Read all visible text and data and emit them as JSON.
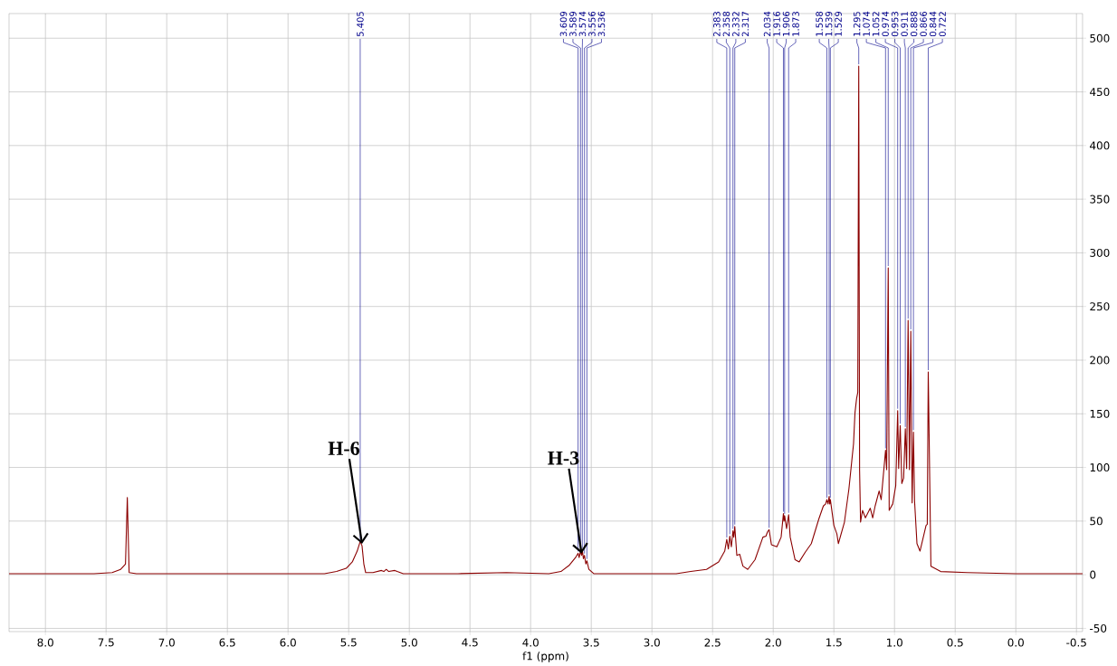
{
  "chart_data": {
    "type": "line",
    "xlabel": "f1 (ppm)",
    "xlim": [
      8.3,
      -0.55
    ],
    "ylim": [
      -53,
      523
    ],
    "xticks": [
      {
        "value": 8,
        "label": "8.0"
      },
      {
        "value": 7.5,
        "label": "7.5"
      },
      {
        "value": 7,
        "label": "7.0"
      },
      {
        "value": 6.5,
        "label": "6.5"
      },
      {
        "value": 6,
        "label": "6.0"
      },
      {
        "value": 5.5,
        "label": "5.5"
      },
      {
        "value": 5,
        "label": "5.0"
      },
      {
        "value": 4.5,
        "label": "4.5"
      },
      {
        "value": 4,
        "label": "4.0"
      },
      {
        "value": 3.5,
        "label": "3.5"
      },
      {
        "value": 3,
        "label": "3.0"
      },
      {
        "value": 2.5,
        "label": "2.5"
      },
      {
        "value": 2,
        "label": "2.0"
      },
      {
        "value": 1.5,
        "label": "1.5"
      },
      {
        "value": 1,
        "label": "1.0"
      },
      {
        "value": 0.5,
        "label": "0.5"
      },
      {
        "value": 0,
        "label": "0.0"
      },
      {
        "value": -0.5,
        "label": "-0.5"
      }
    ],
    "yticks": [
      -50,
      0,
      50,
      100,
      150,
      200,
      250,
      300,
      350,
      400,
      450,
      500
    ],
    "grid": true,
    "line_style": "solid",
    "marker": "none",
    "series": [
      {
        "color": "#8b0000",
        "x": [
          8.3,
          7.6,
          7.45,
          7.38,
          7.34,
          7.325,
          7.31,
          7.25,
          6.5,
          5.7,
          5.6,
          5.52,
          5.47,
          5.43,
          5.405,
          5.39,
          5.375,
          5.36,
          5.3,
          5.23,
          5.21,
          5.19,
          5.17,
          5.12,
          5.1,
          5.05,
          4.6,
          4.2,
          3.85,
          3.75,
          3.68,
          3.63,
          3.609,
          3.6,
          3.589,
          3.58,
          3.574,
          3.565,
          3.556,
          3.545,
          3.536,
          3.52,
          3.48,
          2.8,
          2.68,
          2.55,
          2.45,
          2.4,
          2.383,
          2.37,
          2.358,
          2.345,
          2.332,
          2.325,
          2.317,
          2.3,
          2.276,
          2.25,
          2.21,
          2.15,
          2.085,
          2.06,
          2.047,
          2.034,
          2.015,
          1.97,
          1.935,
          1.916,
          1.911,
          1.906,
          1.89,
          1.873,
          1.86,
          1.82,
          1.786,
          1.736,
          1.686,
          1.624,
          1.587,
          1.568,
          1.558,
          1.548,
          1.539,
          1.534,
          1.529,
          1.5,
          1.475,
          1.463,
          1.413,
          1.376,
          1.338,
          1.326,
          1.313,
          1.303,
          1.295,
          1.288,
          1.28,
          1.264,
          1.24,
          1.2,
          1.18,
          1.16,
          1.127,
          1.11,
          1.074,
          1.065,
          1.052,
          1.044,
          1.015,
          0.99,
          0.974,
          0.966,
          0.953,
          0.94,
          0.925,
          0.911,
          0.9,
          0.888,
          0.877,
          0.866,
          0.855,
          0.844,
          0.835,
          0.815,
          0.79,
          0.74,
          0.73,
          0.722,
          0.7,
          0.62,
          0.4,
          0.0,
          -0.55
        ],
        "values": [
          1,
          1,
          2,
          5,
          10,
          72,
          2,
          1,
          1,
          1,
          3,
          6,
          12,
          22,
          31,
          27,
          10,
          2,
          2,
          4,
          3,
          5,
          3,
          4,
          3,
          1,
          1,
          2,
          1,
          3,
          9,
          16,
          20,
          16,
          22,
          18,
          23,
          15,
          18,
          10,
          13,
          5,
          1,
          1,
          3,
          5,
          12,
          22,
          33,
          24,
          36,
          26,
          41,
          35,
          45,
          18,
          19,
          8,
          5,
          14,
          35,
          36,
          40,
          42,
          28,
          26,
          35,
          57,
          50,
          55,
          43,
          56,
          35,
          14,
          12,
          21,
          29,
          52,
          64,
          66,
          70,
          66,
          73,
          66,
          70,
          46,
          38,
          29,
          49,
          80,
          122,
          151,
          164,
          170,
          474,
          97,
          49,
          60,
          53,
          62,
          53,
          64,
          78,
          70,
          116,
          98,
          286,
          60,
          66,
          83,
          153,
          99,
          139,
          85,
          90,
          136,
          99,
          237,
          98,
          227,
          67,
          133,
          69,
          29,
          22,
          46,
          47,
          189,
          8,
          3,
          2,
          1,
          1
        ]
      }
    ],
    "annotations": [
      {
        "text": "H-6",
        "x": 5.39,
        "y": 27
      },
      {
        "text": "H-3",
        "x": 3.58,
        "y": 18
      },
      {
        "text": "5.405",
        "x": 5.405,
        "y": 31
      },
      {
        "text": "3.609",
        "x": 3.609,
        "y": 20
      },
      {
        "text": "3.589",
        "x": 3.589,
        "y": 22
      },
      {
        "text": "3.574",
        "x": 3.574,
        "y": 23
      },
      {
        "text": "3.556",
        "x": 3.556,
        "y": 18
      },
      {
        "text": "3.536",
        "x": 3.536,
        "y": 13
      },
      {
        "text": "2.383",
        "x": 2.383,
        "y": 33
      },
      {
        "text": "2.358",
        "x": 2.358,
        "y": 36
      },
      {
        "text": "2.332",
        "x": 2.332,
        "y": 41
      },
      {
        "text": "2.317",
        "x": 2.317,
        "y": 45
      },
      {
        "text": "2.034",
        "x": 2.034,
        "y": 42
      },
      {
        "text": "1.916",
        "x": 1.916,
        "y": 57
      },
      {
        "text": "1.906",
        "x": 1.906,
        "y": 55
      },
      {
        "text": "1.873",
        "x": 1.873,
        "y": 56
      },
      {
        "text": "1.558",
        "x": 1.558,
        "y": 70
      },
      {
        "text": "1.539",
        "x": 1.539,
        "y": 73
      },
      {
        "text": "1.529",
        "x": 1.529,
        "y": 70
      },
      {
        "text": "1.295",
        "x": 1.295,
        "y": 474
      },
      {
        "text": "1.074",
        "x": 1.074,
        "y": 116
      },
      {
        "text": "1.052",
        "x": 1.052,
        "y": 286
      },
      {
        "text": "0.974",
        "x": 0.974,
        "y": 153
      },
      {
        "text": "0.953",
        "x": 0.953,
        "y": 139
      },
      {
        "text": "0.911",
        "x": 0.911,
        "y": 136
      },
      {
        "text": "0.888",
        "x": 0.888,
        "y": 237
      },
      {
        "text": "0.866",
        "x": 0.866,
        "y": 227
      },
      {
        "text": "0.844",
        "x": 0.844,
        "y": 133
      },
      {
        "text": "0.722",
        "x": 0.722,
        "y": 189
      }
    ]
  }
}
